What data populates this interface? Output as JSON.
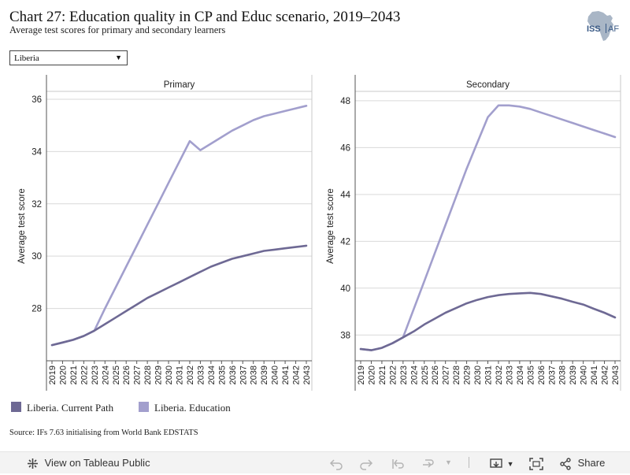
{
  "header": {
    "title": "Chart 27: Education quality in CP and Educ scenario, 2019–2043",
    "subtitle": "Average test scores for primary and secondary learners"
  },
  "logo": {
    "icon": "africa-map-logo",
    "text_iss": "ISS",
    "text_af": "AF"
  },
  "filter": {
    "selected": "Liberia"
  },
  "colors": {
    "current_path": "#6e6994",
    "education": "#a29fcd",
    "gridline": "#d9d9d9",
    "axis": "#555555"
  },
  "legend": [
    {
      "label": "Liberia. Current Path",
      "color": "#6e6994"
    },
    {
      "label": "Liberia. Education",
      "color": "#a29fcd"
    }
  ],
  "source": "Source: IFs 7.63 initialising from World Bank EDSTATS",
  "toolbar": {
    "view_label": "View on Tableau Public",
    "share_label": "Share"
  },
  "chart_data": [
    {
      "type": "line",
      "title": "Primary",
      "ylabel": "Average test score",
      "ylim": [
        26.0,
        36.3
      ],
      "yticks": [
        28,
        30,
        32,
        34,
        36
      ],
      "x": [
        2019,
        2020,
        2021,
        2022,
        2023,
        2024,
        2025,
        2026,
        2027,
        2028,
        2029,
        2030,
        2031,
        2032,
        2033,
        2034,
        2035,
        2036,
        2037,
        2038,
        2039,
        2040,
        2041,
        2042,
        2043
      ],
      "series": [
        {
          "name": "Liberia. Current Path",
          "values": [
            26.6,
            26.7,
            26.8,
            26.95,
            27.15,
            27.4,
            27.65,
            27.9,
            28.15,
            28.4,
            28.6,
            28.8,
            29.0,
            29.2,
            29.4,
            29.6,
            29.75,
            29.9,
            30.0,
            30.1,
            30.2,
            30.25,
            30.3,
            30.35,
            30.4
          ]
        },
        {
          "name": "Liberia. Education",
          "values": [
            26.6,
            26.7,
            26.8,
            26.95,
            27.15,
            28.0,
            28.8,
            29.6,
            30.4,
            31.2,
            32.0,
            32.8,
            33.6,
            34.4,
            34.05,
            34.3,
            34.55,
            34.8,
            35.0,
            35.2,
            35.35,
            35.45,
            35.55,
            35.65,
            35.75
          ]
        }
      ]
    },
    {
      "type": "line",
      "title": "Secondary",
      "ylabel": "Average test score",
      "ylim": [
        36.9,
        48.4
      ],
      "yticks": [
        38,
        40,
        42,
        44,
        46,
        48
      ],
      "x": [
        2019,
        2020,
        2021,
        2022,
        2023,
        2024,
        2025,
        2026,
        2027,
        2028,
        2029,
        2030,
        2031,
        2032,
        2033,
        2034,
        2035,
        2036,
        2037,
        2038,
        2039,
        2040,
        2041,
        2042,
        2043
      ],
      "series": [
        {
          "name": "Liberia. Current Path",
          "values": [
            37.4,
            37.35,
            37.45,
            37.65,
            37.9,
            38.15,
            38.45,
            38.7,
            38.95,
            39.15,
            39.35,
            39.5,
            39.62,
            39.7,
            39.75,
            39.78,
            39.8,
            39.75,
            39.65,
            39.55,
            39.42,
            39.3,
            39.12,
            38.95,
            38.75
          ]
        },
        {
          "name": "Liberia. Education",
          "values": [
            37.4,
            37.35,
            37.45,
            37.65,
            37.9,
            39.1,
            40.3,
            41.5,
            42.7,
            43.9,
            45.1,
            46.2,
            47.3,
            47.8,
            47.8,
            47.75,
            47.65,
            47.5,
            47.35,
            47.2,
            47.05,
            46.9,
            46.75,
            46.6,
            46.45
          ]
        }
      ]
    }
  ]
}
